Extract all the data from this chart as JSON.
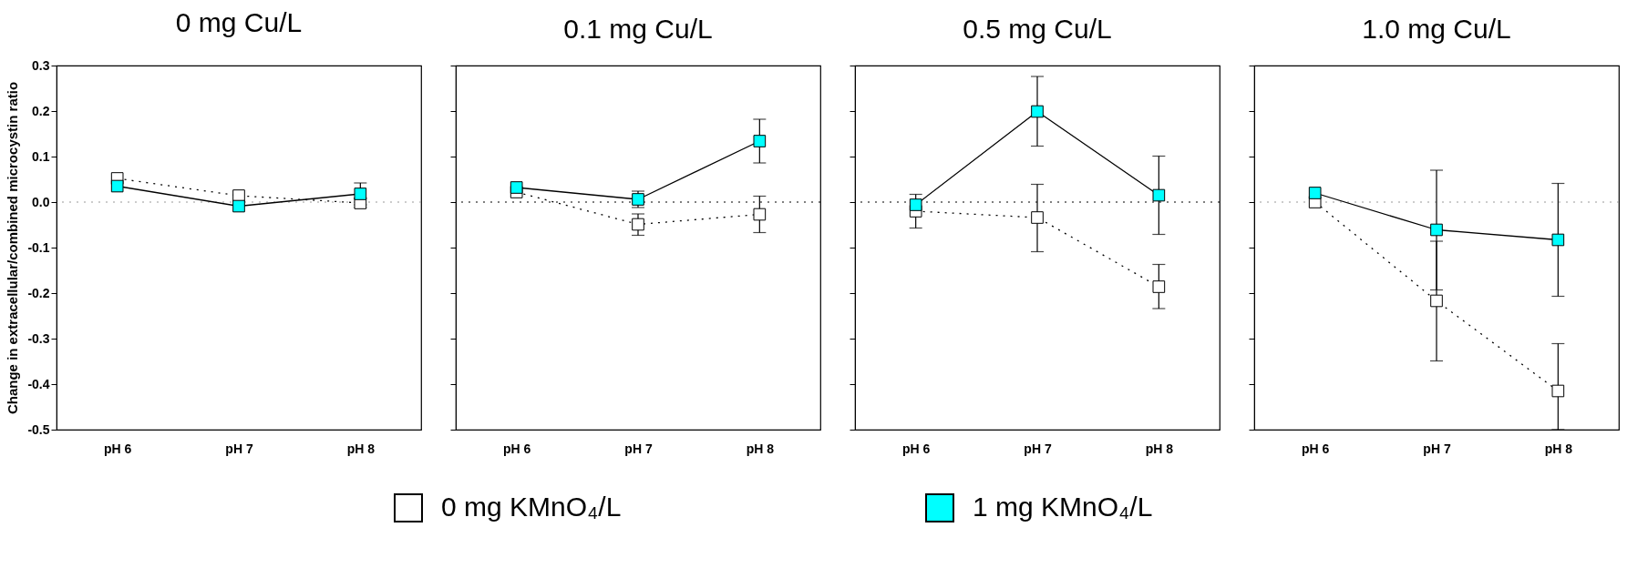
{
  "chart_data": [
    {
      "type": "line",
      "title": "0 mg Cu/L",
      "ylabel": "Change in extracellular/combined microcystin ratio",
      "categories": [
        "pH 6",
        "pH 7",
        "pH 8"
      ],
      "ylim": [
        -0.5,
        0.3
      ],
      "yticks": [
        0.3,
        0.2,
        0.1,
        {
          "value": 0,
          "label": "0.0"
        },
        -0.1,
        -0.2,
        -0.3,
        -0.4,
        -0.5
      ],
      "marker": "square",
      "legend": "bottom",
      "ref_lines": [
        {
          "axis": "y",
          "value": 0,
          "color": "#999999",
          "line_style": "dotted"
        }
      ],
      "series": [
        {
          "name": "0 mg KMnO₄/L",
          "color": "#ffffff",
          "line_style": "dotted",
          "values": [
            0.052,
            0.014,
            -0.002
          ],
          "errors": [
            null,
            null,
            0.01
          ]
        },
        {
          "name": "1 mg KMnO₄/L",
          "color": "#00ffff",
          "line_style": "solid",
          "values": [
            0.035,
            -0.009,
            0.018
          ],
          "errors": [
            null,
            null,
            0.024
          ]
        }
      ]
    },
    {
      "type": "line",
      "title": "0.1 mg Cu/L",
      "categories": [
        "pH 6",
        "pH 7",
        "pH 8"
      ],
      "ylim": [
        -0.5,
        0.3
      ],
      "yticks": [
        0.3,
        0.2,
        0.1,
        0,
        -0.1,
        -0.2,
        -0.3,
        -0.4,
        -0.5
      ],
      "marker": "square",
      "tick_labels": "x",
      "ref_lines": [
        {
          "axis": "y",
          "value": 0,
          "color": "#000000",
          "line_style": "dotted"
        }
      ],
      "series": [
        {
          "color": "#ffffff",
          "line_style": "dotted",
          "values": [
            0.022,
            -0.049,
            -0.027
          ],
          "errors": [
            null,
            [
              -0.073,
              -0.026
            ],
            [
              -0.067,
              0.013
            ]
          ]
        },
        {
          "color": "#00ffff",
          "line_style": "solid",
          "values": [
            0.032,
            0.006,
            0.134
          ],
          "errors": [
            null,
            [
              -0.012,
              0.024
            ],
            [
              0.086,
              0.182
            ]
          ]
        }
      ]
    },
    {
      "type": "line",
      "title": "0.5 mg Cu/L",
      "categories": [
        "pH 6",
        "pH 7",
        "pH 8"
      ],
      "ylim": [
        -0.5,
        0.3
      ],
      "yticks": [
        0.3,
        0.2,
        0.1,
        0,
        -0.1,
        -0.2,
        -0.3,
        -0.4,
        -0.5
      ],
      "marker": "square",
      "tick_labels": "x",
      "ref_lines": [
        {
          "axis": "y",
          "value": 0,
          "color": "#000000",
          "line_style": "dotted"
        }
      ],
      "series": [
        {
          "color": "#ffffff",
          "line_style": "dotted",
          "values": [
            -0.02,
            -0.034,
            -0.186
          ],
          "errors": [
            0.037,
            [
              -0.109,
              0.039
            ],
            [
              -0.234,
              -0.137
            ]
          ]
        },
        {
          "color": "#00ffff",
          "line_style": "solid",
          "values": [
            -0.006,
            0.199,
            0.015
          ],
          "errors": [
            null,
            [
              0.123,
              0.276
            ],
            [
              -0.071,
              0.101
            ]
          ]
        }
      ]
    },
    {
      "type": "line",
      "title": "1.0 mg Cu/L",
      "categories": [
        "pH 6",
        "pH 7",
        "pH 8"
      ],
      "ylim": [
        -0.5,
        0.3
      ],
      "yticks": [
        0.3,
        0.2,
        0.1,
        0,
        -0.1,
        -0.2,
        -0.3,
        -0.4,
        -0.5
      ],
      "marker": "square",
      "tick_labels": "x",
      "ref_lines": [
        {
          "axis": "y",
          "value": 0,
          "color": "#999999",
          "line_style": "dotted"
        }
      ],
      "series": [
        {
          "color": "#ffffff",
          "line_style": "dotted",
          "values": [
            0.0,
            -0.217,
            -0.415
          ],
          "errors": [
            null,
            [
              -0.349,
              -0.086
            ],
            [
              -0.5,
              -0.311
            ]
          ]
        },
        {
          "color": "#00ffff",
          "line_style": "solid",
          "values": [
            0.02,
            -0.061,
            -0.083
          ],
          "errors": [
            null,
            [
              -0.193,
              0.07
            ],
            [
              -0.207,
              0.041
            ]
          ]
        }
      ]
    }
  ]
}
